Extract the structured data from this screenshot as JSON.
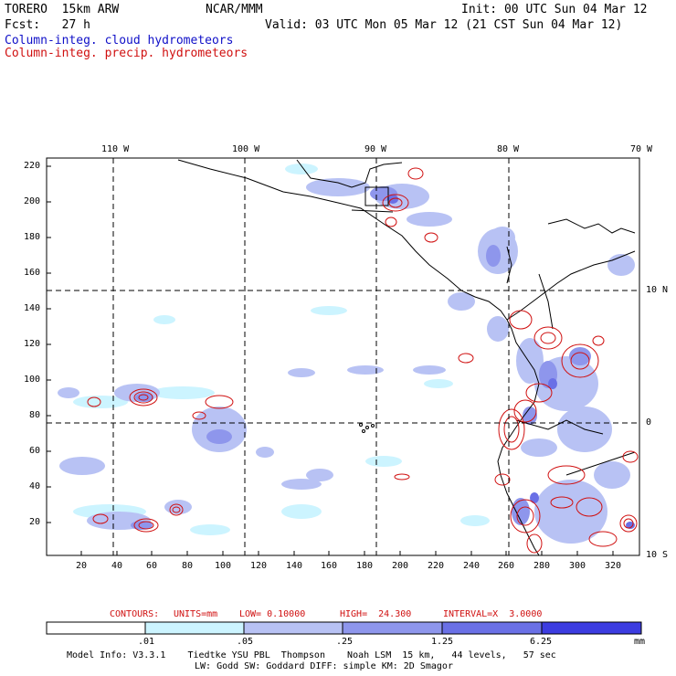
{
  "header": {
    "model": "TORERO  15km ARW",
    "center": "NCAR/MMM",
    "init": "Init: 00 UTC Sun 04 Mar 12",
    "fcst": "Fcst:   27 h",
    "valid": "Valid: 03 UTC Mon 05 Mar 12 (21 CST Sun 04 Mar 12)",
    "legend_cloud": "Column-integ. cloud hydrometeors",
    "legend_precip": "Column-integ. precip. hydrometeors"
  },
  "colors": {
    "cloud": "#1010c8",
    "precip": "#d01010",
    "fill_1": "#ffffff",
    "fill_2": "#ccf4ff",
    "fill_3": "#b8c2f4",
    "fill_4": "#8e96ec",
    "fill_5": "#6a70e6",
    "fill_6": "#3c3ce0",
    "fill_7": "#1a1ad8"
  },
  "map": {
    "lon_labels": [
      "110 W",
      "100 W",
      "90 W",
      "80 W",
      "70 W"
    ],
    "lat_labels": [
      "10 N",
      "0",
      "10 S"
    ],
    "x_ticks": [
      "20",
      "40",
      "60",
      "80",
      "100",
      "120",
      "140",
      "160",
      "180",
      "200",
      "220",
      "240",
      "260",
      "280",
      "300",
      "320"
    ],
    "y_ticks": [
      "220",
      "200",
      "180",
      "160",
      "140",
      "120",
      "100",
      "80",
      "60",
      "40",
      "20"
    ]
  },
  "contours": {
    "label": "CONTOURS:",
    "units": "UNITS=mm",
    "low": "LOW= 0.10000",
    "high": "HIGH=  24.300",
    "interval": "INTERVAL=X  3.0000"
  },
  "colorbar": {
    "thresholds": [
      ".01",
      ".05",
      ".25",
      "1.25",
      "6.25"
    ],
    "unit": "mm"
  },
  "footer": {
    "line1": "Model Info: V3.3.1    Tiedtke YSU PBL  Thompson    Noah LSM  15 km,   44 levels,   57 sec",
    "line2": "LW: Godd SW: Goddard DIFF: simple KM: 2D Smagor"
  }
}
